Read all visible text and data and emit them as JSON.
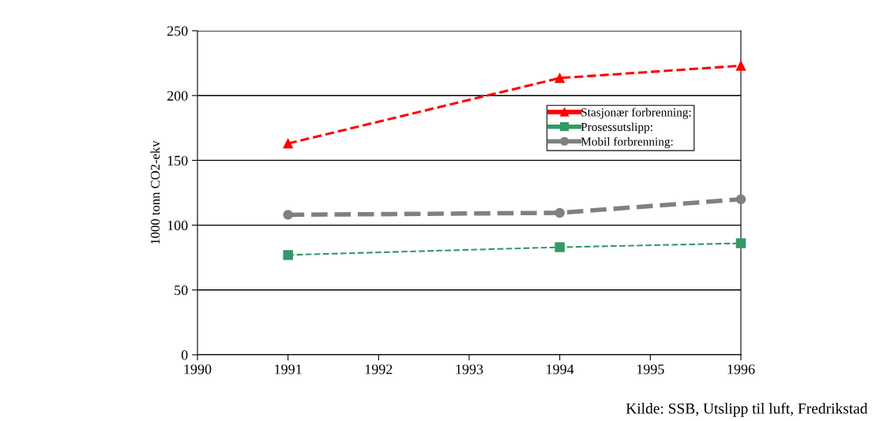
{
  "chart_data": {
    "type": "line",
    "ylabel": "1000 tonn CO2-ekv",
    "x": [
      1991,
      1994,
      1996
    ],
    "series": [
      {
        "name": "Stasjonær forbrenning:",
        "color": "#ff0000",
        "marker": "triangle",
        "values": [
          163,
          213.5,
          223
        ]
      },
      {
        "name": "Prosessutslipp:",
        "color": "#339966",
        "marker": "square",
        "values": [
          77,
          83,
          86
        ]
      },
      {
        "name": "Mobil forbrenning:",
        "color": "#808080",
        "marker": "circle",
        "values": [
          108,
          109.5,
          120
        ]
      }
    ],
    "xlim": [
      1990,
      1996
    ],
    "xticks": [
      1990,
      1991,
      1992,
      1993,
      1994,
      1995,
      1996
    ],
    "ylim": [
      0,
      250
    ],
    "yticks": [
      0,
      50,
      100,
      150,
      200,
      250
    ],
    "grid": "y",
    "legend": "right",
    "line_style": "dashed",
    "annotations": [
      "Kilde: SSB, Utslipp til luft, Fredrikstad"
    ]
  }
}
